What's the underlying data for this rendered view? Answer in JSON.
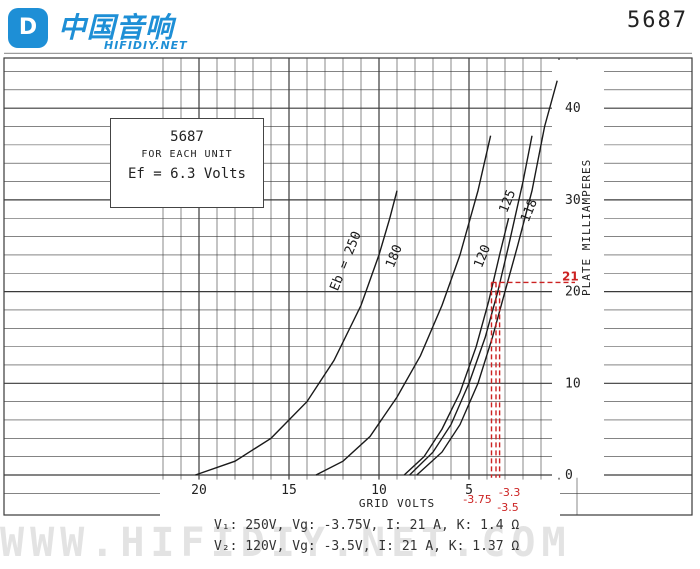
{
  "logo": {
    "mark": "D",
    "text_cn": "中国音响",
    "text_en": "HIFIDIY.NET"
  },
  "tube_id": "5687",
  "info_box": {
    "tube": "5687",
    "each_unit": "FOR EACH UNIT",
    "heater": "Ef = 6.3 Volts"
  },
  "colors": {
    "grid": "#3a3a3a",
    "curve": "#1a1a1a",
    "annotation": "#cc2222",
    "logo": "#1e8fd6"
  },
  "chart_data": {
    "type": "line",
    "xlabel": "GRID VOLTS",
    "ylabel": "PLATE MILLIAMPERES",
    "x_axis_reversed": true,
    "xlim": [
      -22,
      1.6
    ],
    "ylim": [
      -3,
      47
    ],
    "x_ticks": [
      -20,
      -15,
      -10,
      -5
    ],
    "x_tick_labels": [
      "20",
      "15",
      "10",
      "5"
    ],
    "y_ticks": [
      0,
      10,
      20,
      30,
      40
    ],
    "y_tick_labels": [
      "0",
      "10",
      "20",
      "30",
      "40"
    ],
    "grid": true,
    "series": [
      {
        "name": "Eb = 250",
        "x": [
          -20.2,
          -18,
          -16,
          -14,
          -12.5,
          -11,
          -10,
          -9.4,
          -9
        ],
        "y": [
          0,
          1.5,
          4,
          8,
          12.5,
          18.5,
          24,
          28,
          31
        ]
      },
      {
        "name": "180",
        "x": [
          -13.5,
          -12,
          -10.5,
          -9,
          -7.7,
          -6.5,
          -5.5,
          -4.5,
          -3.8
        ],
        "y": [
          0,
          1.5,
          4.2,
          8.5,
          13,
          18.5,
          24,
          31,
          37
        ]
      },
      {
        "name": "120",
        "x": [
          -8.6,
          -7.5,
          -6.5,
          -5.5,
          -4.6,
          -3.9,
          -3.3,
          -2.8
        ],
        "y": [
          0,
          2,
          5,
          9,
          14,
          19,
          24,
          28
        ]
      },
      {
        "name": "125",
        "x": [
          -8.3,
          -7,
          -6,
          -5,
          -4.1,
          -3.4,
          -2.8,
          -2.0,
          -1.5
        ],
        "y": [
          0,
          2.5,
          5.5,
          10,
          15,
          20,
          25,
          32,
          37
        ]
      },
      {
        "name": "118",
        "x": [
          -7.9,
          -6.5,
          -5.5,
          -4.5,
          -3.7,
          -3.0,
          -2.3,
          -1.5,
          -0.8,
          -0.1
        ],
        "y": [
          0,
          2.5,
          5.5,
          10,
          15,
          20,
          25,
          31,
          38,
          43
        ]
      }
    ],
    "curve_labels": [
      {
        "text": "Eb = 250",
        "x": -12.3,
        "y": 20
      },
      {
        "text": "180",
        "x": -9.2,
        "y": 22.5
      },
      {
        "text": "120",
        "x": -4.3,
        "y": 22.5
      },
      {
        "text": "125",
        "x": -2.9,
        "y": 28.5
      },
      {
        "text": "118",
        "x": -1.7,
        "y": 27.5
      }
    ],
    "annotations": {
      "current_label": "21",
      "current_value": 21,
      "bias_labels": [
        "-3.75",
        "-3.3",
        "-3.5"
      ],
      "bias_values": [
        -3.75,
        -3.3,
        -3.5
      ]
    },
    "notes": [
      "V₁: 250V, Vg: -3.75V, I: 21  A, K: 1.4 Ω",
      "V₂: 120V, Vg: -3.5V, I: 21  A, K: 1.37 Ω"
    ]
  }
}
